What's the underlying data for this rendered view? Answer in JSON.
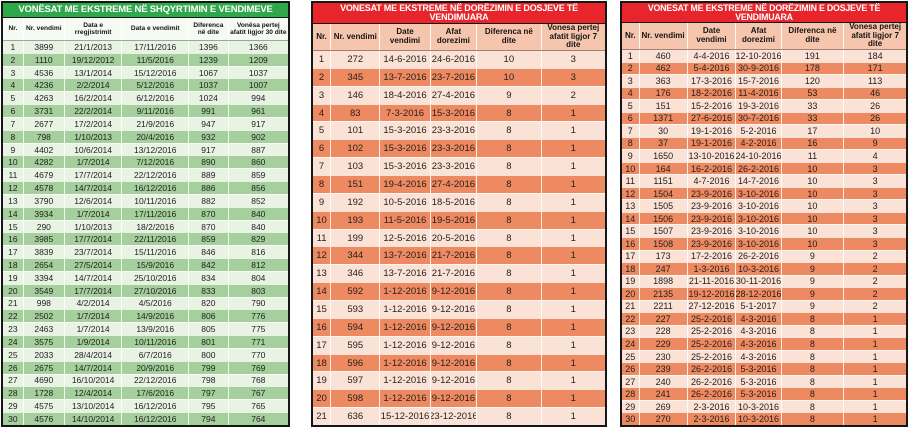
{
  "page": {
    "background": "#ffffff"
  },
  "tables": [
    {
      "name": "shqyrtimi-vendimeve",
      "theme": "green",
      "title": "VONËSAT ME EKSTREME NË SHQYRTIMIN E VENDIMEVE",
      "colors": {
        "title_bg": "#2fa84b",
        "title_text": "#ffffff",
        "header_bg": "#f5faf2",
        "row_light": "#e9f3e4",
        "row_dark": "#a5cf9c",
        "border": "#161616",
        "text": "#222222"
      },
      "columns": [
        "Nr.",
        "Nr. vendimi",
        "Data e rregjistrimit",
        "Data e vendimit",
        "Diferenca në dite",
        "Vonësa pertej afatit ligjor 30 dite"
      ],
      "rows": [
        [
          "1",
          "3899",
          "21/1/2013",
          "17/11/2016",
          "1396",
          "1366"
        ],
        [
          "2",
          "1110",
          "19/12/2012",
          "11/5/2016",
          "1239",
          "1209"
        ],
        [
          "3",
          "4536",
          "13/1/2014",
          "15/12/2016",
          "1067",
          "1037"
        ],
        [
          "4",
          "4236",
          "2/2/2014",
          "5/12/2016",
          "1037",
          "1007"
        ],
        [
          "5",
          "4263",
          "16/2/2014",
          "6/12/2016",
          "1024",
          "994"
        ],
        [
          "6",
          "3731",
          "22/2/2014",
          "9/11/2016",
          "991",
          "961"
        ],
        [
          "7",
          "2677",
          "17/2/2014",
          "21/9/2016",
          "947",
          "917"
        ],
        [
          "8",
          "798",
          "1/10/2013",
          "20/4/2016",
          "932",
          "902"
        ],
        [
          "9",
          "4402",
          "10/6/2014",
          "13/12/2016",
          "917",
          "887"
        ],
        [
          "10",
          "4282",
          "1/7/2014",
          "7/12/2016",
          "890",
          "860"
        ],
        [
          "11",
          "4679",
          "17/7/2014",
          "22/12/2016",
          "889",
          "859"
        ],
        [
          "12",
          "4578",
          "14/7/2014",
          "16/12/2016",
          "886",
          "856"
        ],
        [
          "13",
          "3790",
          "12/6/2014",
          "10/11/2016",
          "882",
          "852"
        ],
        [
          "14",
          "3934",
          "1/7/2014",
          "17/11/2016",
          "870",
          "840"
        ],
        [
          "15",
          "290",
          "1/10/2013",
          "18/2/2016",
          "870",
          "840"
        ],
        [
          "16",
          "3985",
          "17/7/2014",
          "22/11/2016",
          "859",
          "829"
        ],
        [
          "17",
          "3839",
          "23/7/2014",
          "15/11/2016",
          "846",
          "816"
        ],
        [
          "18",
          "2654",
          "27/5/2014",
          "15/9/2016",
          "842",
          "812"
        ],
        [
          "19",
          "3394",
          "14/7/2014",
          "25/10/2016",
          "834",
          "804"
        ],
        [
          "20",
          "3549",
          "17/7/2014",
          "27/10/2016",
          "833",
          "803"
        ],
        [
          "21",
          "998",
          "4/2/2014",
          "4/5/2016",
          "820",
          "790"
        ],
        [
          "22",
          "2502",
          "1/7/2014",
          "14/9/2016",
          "806",
          "776"
        ],
        [
          "23",
          "2463",
          "1/7/2014",
          "13/9/2016",
          "805",
          "775"
        ],
        [
          "24",
          "3575",
          "1/9/2014",
          "10/11/2016",
          "801",
          "771"
        ],
        [
          "25",
          "2033",
          "28/4/2014",
          "6/7/2016",
          "800",
          "770"
        ],
        [
          "26",
          "2675",
          "14/7/2014",
          "20/9/2016",
          "799",
          "769"
        ],
        [
          "27",
          "4690",
          "16/10/2014",
          "22/12/2016",
          "798",
          "768"
        ],
        [
          "28",
          "1728",
          "12/4/2014",
          "17/6/2016",
          "797",
          "767"
        ],
        [
          "29",
          "4575",
          "13/10/2014",
          "16/12/2016",
          "795",
          "765"
        ],
        [
          "30",
          "4576",
          "14/10/2014",
          "16/12/2016",
          "794",
          "764"
        ]
      ]
    },
    {
      "name": "dorezimi-dosjeve-1",
      "theme": "red",
      "title": "VONESAT ME EKSTREME NË DORËZIMIN E DOSJEVE TË VENDIMUARA",
      "colors": {
        "title_bg": "#e8252b",
        "title_text": "#ffffff",
        "header_bg": "#f6c5ad",
        "row_light": "#fbe2d7",
        "row_dark": "#ee8a62",
        "border": "#161616",
        "text": "#26201c"
      },
      "columns": [
        "Nr.",
        "Nr. vendimi",
        "Date vendimi",
        "Afat dorezimi",
        "Diferenca në dite",
        "Vonesa pertej afatit ligjor 7 dite"
      ],
      "rows": [
        [
          "1",
          "272",
          "14-6-2016",
          "24-6-2016",
          "10",
          "3"
        ],
        [
          "2",
          "345",
          "13-7-2016",
          "23-7-2016",
          "10",
          "3"
        ],
        [
          "3",
          "146",
          "18-4-2016",
          "27-4-2016",
          "9",
          "2"
        ],
        [
          "4",
          "83",
          "7-3-2016",
          "15-3-2016",
          "8",
          "1"
        ],
        [
          "5",
          "101",
          "15-3-2016",
          "23-3-2016",
          "8",
          "1"
        ],
        [
          "6",
          "102",
          "15-3-2016",
          "23-3-2016",
          "8",
          "1"
        ],
        [
          "7",
          "103",
          "15-3-2016",
          "23-3-2016",
          "8",
          "1"
        ],
        [
          "8",
          "151",
          "19-4-2016",
          "27-4-2016",
          "8",
          "1"
        ],
        [
          "9",
          "192",
          "10-5-2016",
          "18-5-2016",
          "8",
          "1"
        ],
        [
          "10",
          "193",
          "11-5-2016",
          "19-5-2016",
          "8",
          "1"
        ],
        [
          "11",
          "199",
          "12-5-2016",
          "20-5-2016",
          "8",
          "1"
        ],
        [
          "12",
          "344",
          "13-7-2016",
          "21-7-2016",
          "8",
          "1"
        ],
        [
          "13",
          "346",
          "13-7-2016",
          "21-7-2016",
          "8",
          "1"
        ],
        [
          "14",
          "592",
          "1-12-2016",
          "9-12-2016",
          "8",
          "1"
        ],
        [
          "15",
          "593",
          "1-12-2016",
          "9-12-2016",
          "8",
          "1"
        ],
        [
          "16",
          "594",
          "1-12-2016",
          "9-12-2016",
          "8",
          "1"
        ],
        [
          "17",
          "595",
          "1-12-2016",
          "9-12-2016",
          "8",
          "1"
        ],
        [
          "18",
          "596",
          "1-12-2016",
          "9-12-2016",
          "8",
          "1"
        ],
        [
          "19",
          "597",
          "1-12-2016",
          "9-12-2016",
          "8",
          "1"
        ],
        [
          "20",
          "598",
          "1-12-2016",
          "9-12-2016",
          "8",
          "1"
        ],
        [
          "21",
          "636",
          "15-12-2016",
          "23-12-2016",
          "8",
          "1"
        ]
      ]
    },
    {
      "name": "dorezimi-dosjeve-2",
      "theme": "red",
      "title": "VONESAT ME EKSTREME NË DORËZIMIN E DOSJEVE TË VENDIMUARA",
      "colors": {
        "title_bg": "#e8252b",
        "title_text": "#ffffff",
        "header_bg": "#f6c5ad",
        "row_light": "#fbe2d7",
        "row_dark": "#ee8a62",
        "border": "#161616",
        "text": "#26201c"
      },
      "columns": [
        "Nr.",
        "Nr. vendimi",
        "Date vendimi",
        "Afat dorezimi",
        "Diferenca në dite",
        "Vonesa pertej afatit ligjor 7 dite"
      ],
      "rows": [
        [
          "1",
          "460",
          "4-4-2016",
          "12-10-2016",
          "191",
          "184"
        ],
        [
          "2",
          "462",
          "5-4-2016",
          "30-9-2016",
          "178",
          "171"
        ],
        [
          "3",
          "363",
          "17-3-2016",
          "15-7-2016",
          "120",
          "113"
        ],
        [
          "4",
          "176",
          "18-2-2016",
          "11-4-2016",
          "53",
          "46"
        ],
        [
          "5",
          "151",
          "15-2-2016",
          "19-3-2016",
          "33",
          "26"
        ],
        [
          "6",
          "1371",
          "27-6-2016",
          "30-7-2016",
          "33",
          "26"
        ],
        [
          "7",
          "30",
          "19-1-2016",
          "5-2-2016",
          "17",
          "10"
        ],
        [
          "8",
          "37",
          "19-1-2016",
          "4-2-2016",
          "16",
          "9"
        ],
        [
          "9",
          "1650",
          "13-10-2016",
          "24-10-2016",
          "11",
          "4"
        ],
        [
          "10",
          "164",
          "16-2-2016",
          "26-2-2016",
          "10",
          "3"
        ],
        [
          "11",
          "1151",
          "4-7-2016",
          "14-7-2016",
          "10",
          "3"
        ],
        [
          "12",
          "1504",
          "23-9-2016",
          "3-10-2016",
          "10",
          "3"
        ],
        [
          "13",
          "1505",
          "23-9-2016",
          "3-10-2016",
          "10",
          "3"
        ],
        [
          "14",
          "1506",
          "23-9-2016",
          "3-10-2016",
          "10",
          "3"
        ],
        [
          "15",
          "1507",
          "23-9-2016",
          "3-10-2016",
          "10",
          "3"
        ],
        [
          "16",
          "1508",
          "23-9-2016",
          "3-10-2016",
          "10",
          "3"
        ],
        [
          "17",
          "173",
          "17-2-2016",
          "26-2-2016",
          "9",
          "2"
        ],
        [
          "18",
          "247",
          "1-3-2016",
          "10-3-2016",
          "9",
          "2"
        ],
        [
          "19",
          "1898",
          "21-11-2016",
          "30-11-2016",
          "9",
          "2"
        ],
        [
          "20",
          "2135",
          "19-12-2016",
          "28-12-2016",
          "9",
          "2"
        ],
        [
          "21",
          "2211",
          "27-12-2016",
          "5-1-2017",
          "9",
          "2"
        ],
        [
          "22",
          "227",
          "25-2-2016",
          "4-3-2016",
          "8",
          "1"
        ],
        [
          "23",
          "228",
          "25-2-2016",
          "4-3-2016",
          "8",
          "1"
        ],
        [
          "24",
          "229",
          "25-2-2016",
          "4-3-2016",
          "8",
          "1"
        ],
        [
          "25",
          "230",
          "25-2-2016",
          "4-3-2016",
          "8",
          "1"
        ],
        [
          "26",
          "239",
          "26-2-2016",
          "5-3-2016",
          "8",
          "1"
        ],
        [
          "27",
          "240",
          "26-2-2016",
          "5-3-2016",
          "8",
          "1"
        ],
        [
          "28",
          "241",
          "26-2-2016",
          "5-3-2016",
          "8",
          "1"
        ],
        [
          "29",
          "269",
          "2-3-2016",
          "10-3-2016",
          "8",
          "1"
        ],
        [
          "30",
          "270",
          "2-3-2016",
          "10-3-2016",
          "8",
          "1"
        ]
      ]
    }
  ]
}
